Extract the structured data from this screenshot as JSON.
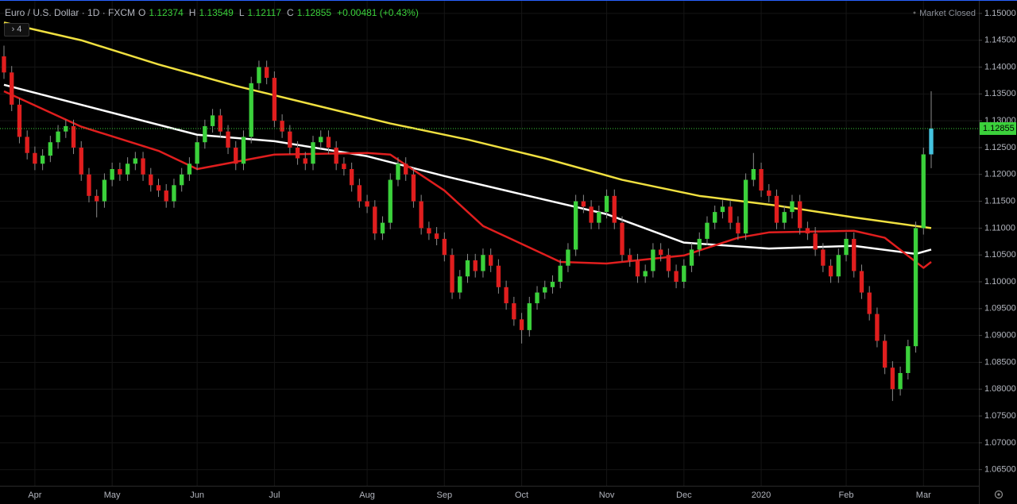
{
  "chart_data": {
    "type": "candlestick",
    "title": "Euro / U.S. Dollar · 1D · FXCM",
    "ohlc_labels": [
      "O",
      "H",
      "L",
      "C"
    ],
    "change": "+0.00481 (+0.43%)",
    "status": "Market Closed",
    "indicator_count": "4",
    "up_color": "#3bd13b",
    "down_color": "#e01e1e",
    "last_color": "#44c3e0",
    "grid": true,
    "categories": [
      null,
      null,
      null,
      null,
      "Apr",
      null,
      null,
      null,
      null,
      null,
      null,
      null,
      null,
      null,
      "May",
      null,
      null,
      null,
      null,
      null,
      null,
      null,
      null,
      null,
      null,
      "Jun",
      null,
      null,
      null,
      null,
      null,
      null,
      null,
      null,
      null,
      "Jul",
      null,
      null,
      null,
      null,
      null,
      null,
      null,
      null,
      null,
      null,
      null,
      "Aug",
      null,
      null,
      null,
      null,
      null,
      null,
      null,
      null,
      null,
      "Sep",
      null,
      null,
      null,
      null,
      null,
      null,
      null,
      null,
      null,
      "Oct",
      null,
      null,
      null,
      null,
      null,
      null,
      null,
      null,
      null,
      null,
      "Nov",
      null,
      null,
      null,
      null,
      null,
      null,
      null,
      null,
      null,
      "Dec",
      null,
      null,
      null,
      null,
      null,
      null,
      null,
      null,
      null,
      "2020",
      null,
      null,
      null,
      null,
      null,
      null,
      null,
      null,
      null,
      null,
      "Feb",
      null,
      null,
      null,
      null,
      null,
      null,
      null,
      null,
      null,
      "Mar",
      null
    ],
    "open": [
      1.142,
      1.139,
      1.133,
      1.127,
      1.124,
      1.122,
      1.1235,
      1.126,
      1.128,
      1.129,
      1.125,
      1.12,
      1.116,
      1.115,
      1.119,
      1.121,
      1.12,
      1.122,
      1.123,
      1.12,
      1.118,
      1.117,
      1.115,
      1.118,
      1.12,
      1.122,
      1.126,
      1.129,
      1.131,
      1.128,
      1.125,
      1.122,
      1.127,
      1.137,
      1.14,
      1.138,
      1.13,
      1.128,
      1.125,
      1.123,
      1.122,
      1.126,
      1.127,
      1.125,
      1.122,
      1.121,
      1.118,
      1.115,
      1.114,
      1.109,
      1.111,
      1.119,
      1.122,
      1.12,
      1.115,
      1.11,
      1.109,
      1.108,
      1.105,
      1.098,
      1.101,
      1.104,
      1.102,
      1.105,
      1.103,
      1.099,
      1.096,
      1.093,
      1.091,
      1.096,
      1.098,
      1.099,
      1.1,
      1.103,
      1.106,
      1.115,
      1.114,
      1.111,
      1.113,
      1.116,
      1.111,
      1.105,
      1.104,
      1.101,
      1.102,
      1.106,
      1.105,
      1.102,
      1.1,
      1.103,
      1.106,
      1.108,
      1.111,
      1.113,
      1.114,
      1.111,
      1.109,
      1.119,
      1.121,
      1.117,
      1.116,
      1.111,
      1.113,
      1.115,
      1.11,
      1.109,
      1.106,
      1.103,
      1.101,
      1.105,
      1.108,
      1.102,
      1.098,
      1.094,
      1.089,
      1.084,
      1.08,
      1.083,
      1.088,
      1.11,
      1.12374
    ],
    "high": [
      1.144,
      1.1402,
      1.1342,
      1.1282,
      1.1252,
      1.1247,
      1.1272,
      1.1292,
      1.1302,
      1.1302,
      1.1262,
      1.1212,
      1.1172,
      1.1202,
      1.1222,
      1.1222,
      1.1232,
      1.1242,
      1.1242,
      1.1212,
      1.1192,
      1.1182,
      1.1192,
      1.1212,
      1.1232,
      1.1272,
      1.1302,
      1.1322,
      1.1322,
      1.1292,
      1.1262,
      1.1282,
      1.1382,
      1.1412,
      1.1412,
      1.1392,
      1.1312,
      1.1292,
      1.1262,
      1.1242,
      1.1272,
      1.1282,
      1.1282,
      1.1262,
      1.1232,
      1.1222,
      1.1192,
      1.1162,
      1.1152,
      1.1122,
      1.1202,
      1.1232,
      1.1232,
      1.1212,
      1.1162,
      1.1112,
      1.1102,
      1.1092,
      1.1062,
      1.1022,
      1.1052,
      1.1052,
      1.1062,
      1.1062,
      1.1042,
      1.1002,
      1.0972,
      1.0942,
      1.0972,
      1.0992,
      1.1002,
      1.1012,
      1.1042,
      1.1072,
      1.1162,
      1.1162,
      1.1152,
      1.1142,
      1.1172,
      1.1172,
      1.1122,
      1.1062,
      1.1052,
      1.1032,
      1.1072,
      1.1072,
      1.1062,
      1.1032,
      1.1042,
      1.1072,
      1.1092,
      1.1122,
      1.1142,
      1.1152,
      1.1152,
      1.1122,
      1.1202,
      1.124,
      1.1222,
      1.1182,
      1.1172,
      1.1142,
      1.1162,
      1.1162,
      1.1112,
      1.1102,
      1.1072,
      1.1042,
      1.1062,
      1.1092,
      1.1092,
      1.1032,
      1.0992,
      1.0952,
      1.0902,
      1.0852,
      1.0842,
      1.0892,
      1.1112,
      1.125,
      1.13549
    ],
    "low": [
      1.1378,
      1.1318,
      1.1258,
      1.1228,
      1.1208,
      1.1208,
      1.1223,
      1.1248,
      1.1268,
      1.1238,
      1.1188,
      1.1148,
      1.112,
      1.1138,
      1.1178,
      1.1188,
      1.1188,
      1.1208,
      1.1188,
      1.1168,
      1.1158,
      1.1138,
      1.1138,
      1.1168,
      1.1188,
      1.1208,
      1.1248,
      1.1278,
      1.1268,
      1.1238,
      1.1208,
      1.1208,
      1.1258,
      1.1358,
      1.1368,
      1.1288,
      1.1268,
      1.1238,
      1.1218,
      1.1208,
      1.1208,
      1.1248,
      1.1238,
      1.1208,
      1.1198,
      1.1168,
      1.1138,
      1.1128,
      1.1078,
      1.1078,
      1.1098,
      1.1178,
      1.1188,
      1.1138,
      1.1088,
      1.1078,
      1.1068,
      1.1038,
      1.0968,
      1.0968,
      1.0998,
      1.1008,
      1.1008,
      1.1018,
      1.0978,
      1.0948,
      1.0918,
      1.0885,
      1.0898,
      1.0948,
      1.0968,
      1.0978,
      1.0988,
      1.1018,
      1.1048,
      1.1128,
      1.1098,
      1.1098,
      1.1118,
      1.1098,
      1.1038,
      1.1028,
      1.0998,
      1.0998,
      1.1008,
      1.1038,
      1.1008,
      1.0988,
      1.0988,
      1.1018,
      1.1048,
      1.1068,
      1.1098,
      1.1118,
      1.1098,
      1.1078,
      1.1078,
      1.1178,
      1.1158,
      1.1148,
      1.1098,
      1.1098,
      1.1118,
      1.1088,
      1.1078,
      1.1048,
      1.1018,
      1.0998,
      1.0998,
      1.1038,
      1.1008,
      1.0968,
      1.0928,
      1.0878,
      1.0828,
      1.0778,
      1.0788,
      1.0818,
      1.0868,
      1.1088,
      1.12117
    ],
    "close": [
      1.139,
      1.133,
      1.127,
      1.124,
      1.122,
      1.1235,
      1.126,
      1.128,
      1.129,
      1.125,
      1.12,
      1.116,
      1.115,
      1.119,
      1.121,
      1.12,
      1.122,
      1.123,
      1.12,
      1.118,
      1.117,
      1.115,
      1.118,
      1.12,
      1.122,
      1.126,
      1.129,
      1.131,
      1.128,
      1.125,
      1.122,
      1.127,
      1.137,
      1.14,
      1.138,
      1.13,
      1.128,
      1.125,
      1.123,
      1.122,
      1.126,
      1.127,
      1.125,
      1.122,
      1.121,
      1.118,
      1.115,
      1.114,
      1.109,
      1.111,
      1.119,
      1.122,
      1.12,
      1.115,
      1.11,
      1.109,
      1.108,
      1.105,
      1.098,
      1.101,
      1.104,
      1.102,
      1.105,
      1.103,
      1.099,
      1.096,
      1.093,
      1.091,
      1.096,
      1.098,
      1.099,
      1.1,
      1.103,
      1.106,
      1.115,
      1.114,
      1.111,
      1.113,
      1.116,
      1.111,
      1.105,
      1.104,
      1.101,
      1.102,
      1.106,
      1.105,
      1.102,
      1.1,
      1.103,
      1.106,
      1.108,
      1.111,
      1.113,
      1.114,
      1.111,
      1.109,
      1.119,
      1.121,
      1.117,
      1.116,
      1.111,
      1.113,
      1.115,
      1.11,
      1.109,
      1.106,
      1.103,
      1.101,
      1.105,
      1.108,
      1.102,
      1.098,
      1.094,
      1.089,
      1.084,
      1.08,
      1.083,
      1.088,
      1.11,
      1.12374,
      1.12855
    ],
    "series": [
      {
        "color": "#f0e040",
        "x": [
          0,
          10,
          20,
          30,
          40,
          50,
          60,
          70,
          80,
          90,
          100,
          110,
          120
        ],
        "values": [
          1.1483,
          1.145,
          1.1405,
          1.1365,
          1.133,
          1.1295,
          1.1265,
          1.123,
          1.119,
          1.116,
          1.1142,
          1.112,
          1.11
        ]
      },
      {
        "color": "#ffffff",
        "x": [
          0,
          25,
          35,
          47,
          57,
          67,
          78,
          88,
          99,
          110,
          118,
          120
        ],
        "values": [
          1.1367,
          1.1274,
          1.1262,
          1.1234,
          1.1197,
          1.1163,
          1.1126,
          1.1073,
          1.1062,
          1.1067,
          1.1052,
          1.106
        ]
      },
      {
        "color": "#e01e1e",
        "x": [
          0,
          10,
          20,
          25,
          35,
          47,
          50,
          57,
          62,
          72,
          78,
          88,
          95,
          99,
          110,
          114,
          119,
          120
        ],
        "values": [
          1.1355,
          1.1289,
          1.1244,
          1.121,
          1.1237,
          1.124,
          1.1237,
          1.117,
          1.1104,
          1.1037,
          1.1034,
          1.1049,
          1.1082,
          1.1092,
          1.1095,
          1.1082,
          1.1026,
          1.1037
        ]
      }
    ],
    "ylim": [
      1.062,
      1.1525
    ],
    "yticks": [
      {
        "value": 1.065,
        "label": "1.06500"
      },
      {
        "value": 1.07,
        "label": "1.07000"
      },
      {
        "value": 1.075,
        "label": "1.07500"
      },
      {
        "value": 1.08,
        "label": "1.08000"
      },
      {
        "value": 1.085,
        "label": "1.08500"
      },
      {
        "value": 1.09,
        "label": "1.09000"
      },
      {
        "value": 1.095,
        "label": "1.09500"
      },
      {
        "value": 1.1,
        "label": "1.10000"
      },
      {
        "value": 1.105,
        "label": "1.10500"
      },
      {
        "value": 1.11,
        "label": "1.11000"
      },
      {
        "value": 1.115,
        "label": "1.11500"
      },
      {
        "value": 1.12,
        "label": "1.12000"
      },
      {
        "value": 1.125,
        "label": "1.12500"
      },
      {
        "value": 1.13,
        "label": "1.13000"
      },
      {
        "value": 1.135,
        "label": "1.13500"
      },
      {
        "value": 1.14,
        "label": "1.14000"
      },
      {
        "value": 1.145,
        "label": "1.14500"
      },
      {
        "value": 1.15,
        "label": "1.15000"
      }
    ]
  }
}
